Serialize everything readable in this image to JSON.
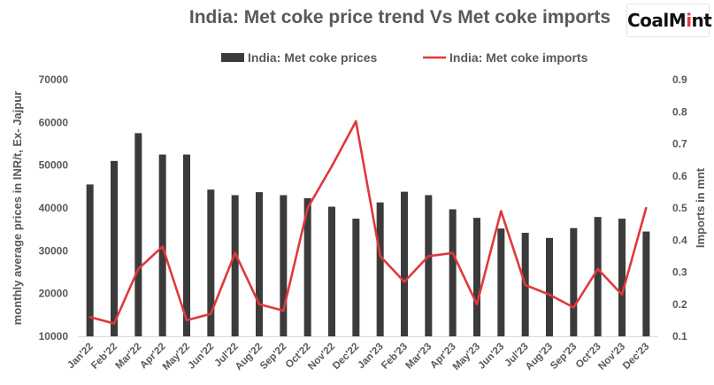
{
  "title": "India: Met coke price trend Vs Met coke imports",
  "logo": {
    "text": "CoalMint"
  },
  "colors": {
    "bars": "#3b3b3b",
    "line": "#e0383b",
    "text": "#595959"
  },
  "chart_data": {
    "type": "bar",
    "title": "India: Met coke price trend Vs Met coke imports",
    "categories": [
      "Jan'22",
      "Feb'22",
      "Mar'22",
      "Apr'22",
      "May'22",
      "Jun'22",
      "Jul'22",
      "Aug'22",
      "Sep'22",
      "Oct'22",
      "Nov'22",
      "Dec'22",
      "Jan'23",
      "Feb'23",
      "Mar'23",
      "Apr'23",
      "May'23",
      "Jun'23",
      "Jul'23",
      "Aug'23",
      "Sep'23",
      "Oct'23",
      "Nov'23",
      "Dec'23"
    ],
    "series": [
      {
        "name": "India: Met coke prices",
        "type": "bar",
        "axis": "left",
        "values": [
          45500,
          51000,
          57500,
          52500,
          52500,
          44300,
          43000,
          43700,
          43000,
          42300,
          40300,
          37500,
          41300,
          43800,
          43000,
          39700,
          37700,
          35200,
          34200,
          33000,
          35300,
          37900,
          37500,
          34500
        ]
      },
      {
        "name": "India: Met coke imports",
        "type": "line",
        "axis": "right",
        "values": [
          0.16,
          0.14,
          0.31,
          0.38,
          0.15,
          0.17,
          0.36,
          0.2,
          0.18,
          0.5,
          0.63,
          0.77,
          0.35,
          0.27,
          0.35,
          0.36,
          0.2,
          0.49,
          0.26,
          0.23,
          0.19,
          0.31,
          0.23,
          0.5
        ]
      }
    ],
    "ylabel": "monthly average prices in INR/t, Ex- Jajpur",
    "y2label": "Imports in mnt",
    "ylim": [
      10000,
      70000
    ],
    "y2lim": [
      0.1,
      0.9
    ],
    "yticks": [
      "10000",
      "20000",
      "30000",
      "40000",
      "50000",
      "60000",
      "70000"
    ],
    "y2ticks": [
      "0.1",
      "0.2",
      "0.3",
      "0.4",
      "0.5",
      "0.6",
      "0.7",
      "0.8",
      "0.9"
    ],
    "legend_position": "top-center",
    "grid": false
  }
}
